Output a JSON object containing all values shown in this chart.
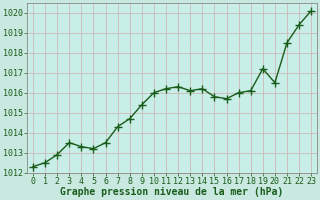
{
  "x": [
    0,
    1,
    2,
    3,
    4,
    5,
    6,
    7,
    8,
    9,
    10,
    11,
    12,
    13,
    14,
    15,
    16,
    17,
    18,
    19,
    20,
    21,
    22,
    23
  ],
  "y": [
    1012.3,
    1012.5,
    1012.9,
    1013.5,
    1013.3,
    1013.2,
    1013.5,
    1014.3,
    1014.7,
    1015.4,
    1016.0,
    1016.2,
    1016.3,
    1016.1,
    1016.2,
    1015.8,
    1015.7,
    1016.0,
    1016.1,
    1017.2,
    1016.5,
    1018.5,
    1019.4,
    1020.1
  ],
  "line_color": "#1a5c1a",
  "marker": "P",
  "marker_size": 3.0,
  "line_width": 1.0,
  "bg_color": "#c8e8e0",
  "plot_bg_color": "#c8eee8",
  "grid_color": "#d0b8b8",
  "xlabel": "Graphe pression niveau de la mer (hPa)",
  "xlabel_color": "#1a5c1a",
  "xlabel_fontsize": 7.0,
  "tick_color": "#1a5c1a",
  "tick_fontsize": 6.0,
  "ylim": [
    1012,
    1020.5
  ],
  "yticks": [
    1012,
    1013,
    1014,
    1015,
    1016,
    1017,
    1018,
    1019,
    1020
  ],
  "xlim": [
    -0.5,
    23.5
  ],
  "xticks": [
    0,
    1,
    2,
    3,
    4,
    5,
    6,
    7,
    8,
    9,
    10,
    11,
    12,
    13,
    14,
    15,
    16,
    17,
    18,
    19,
    20,
    21,
    22,
    23
  ],
  "spine_color": "#888888"
}
